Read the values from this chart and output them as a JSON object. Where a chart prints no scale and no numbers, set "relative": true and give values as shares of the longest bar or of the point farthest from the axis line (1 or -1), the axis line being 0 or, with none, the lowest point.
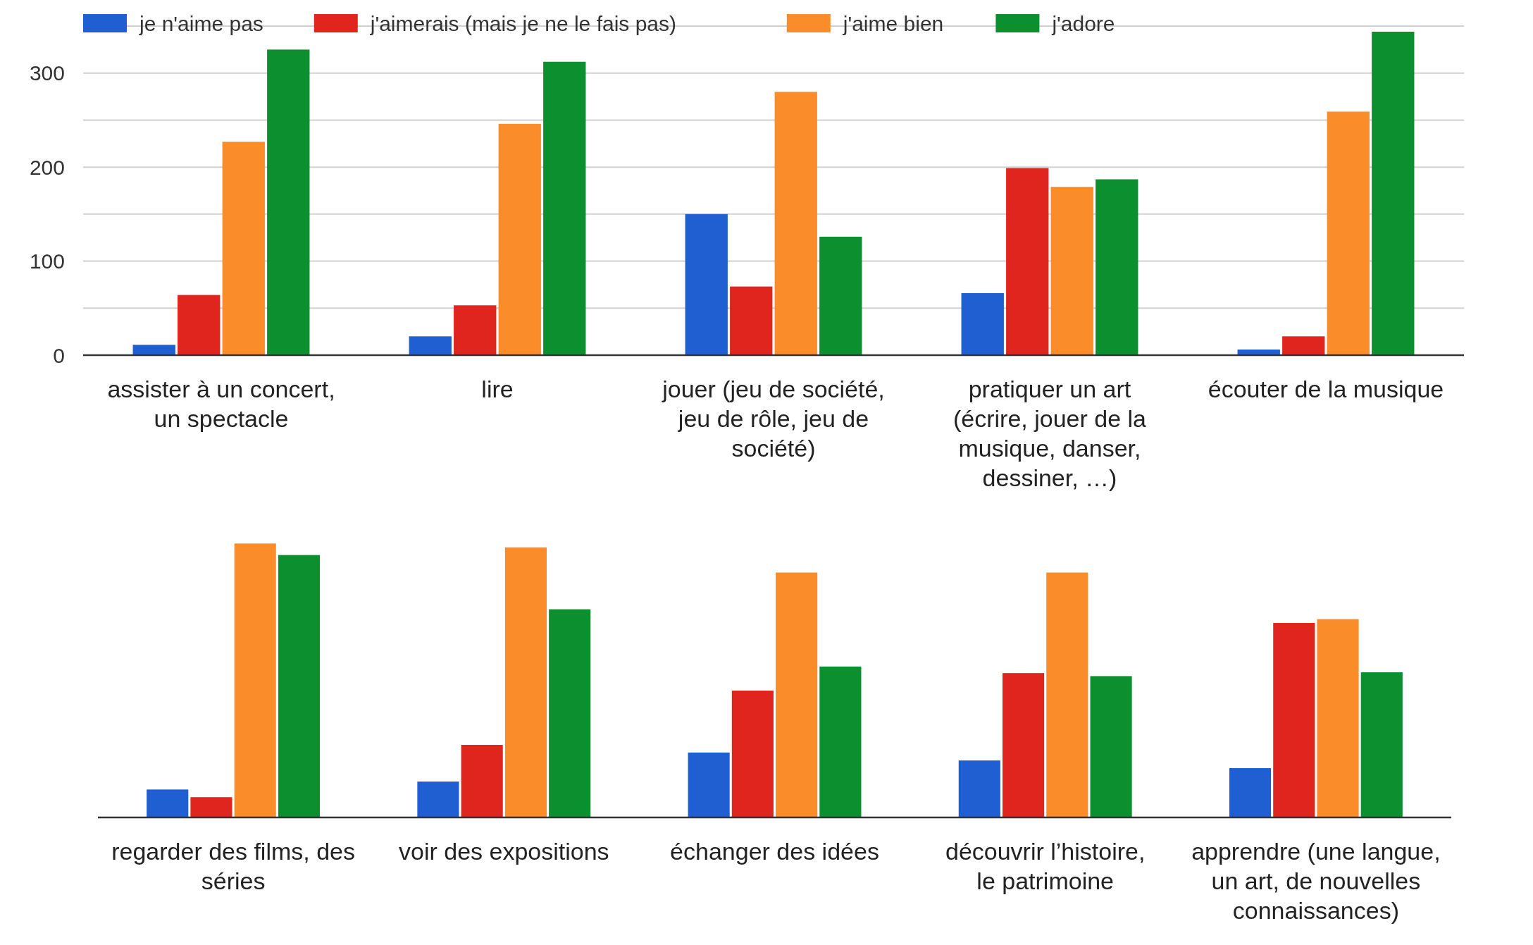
{
  "chart_data": [
    {
      "type": "bar",
      "categories": [
        "assister à un concert, un spectacle",
        "lire",
        "jouer (jeu de société, jeu de rôle, jeu de société)",
        "pratiquer un art (écrire, jouer de la musique, danser, dessiner, …)",
        "écouter de la musique"
      ],
      "series": [
        {
          "name": "je n'aime pas",
          "color": "#1f5fd1",
          "values": [
            11,
            20,
            150,
            66,
            6
          ]
        },
        {
          "name": "j'aimerais (mais je ne le fais pas)",
          "color": "#e0251f",
          "values": [
            64,
            53,
            73,
            199,
            20
          ]
        },
        {
          "name": "j'aime bien",
          "color": "#fb8c2a",
          "values": [
            227,
            246,
            280,
            179,
            259
          ]
        },
        {
          "name": "j'adore",
          "color": "#0c8f2e",
          "values": [
            325,
            312,
            126,
            187,
            344
          ]
        }
      ],
      "ylim": [
        0,
        350
      ],
      "yticks": [
        0,
        {
          "value": 50,
          "label": null
        },
        100,
        {
          "value": 150,
          "label": null
        },
        200,
        {
          "value": 250,
          "label": null
        },
        300,
        {
          "value": 350,
          "label": null
        }
      ],
      "grid": "y",
      "legend": "top left"
    },
    {
      "type": "bar",
      "relative": true,
      "categories": [
        "regarder des films, des séries",
        "voir des expositions",
        "échanger des idées",
        "découvrir l’histoire, le patrimoine",
        "apprendre (une langue, un art, de nouvelles connaissances)"
      ],
      "series": [
        {
          "color": "#1f5fd1",
          "values": [
            0.102,
            0.131,
            0.237,
            0.208,
            0.18
          ]
        },
        {
          "color": "#e0251f",
          "values": [
            0.074,
            0.265,
            0.463,
            0.527,
            0.71
          ]
        },
        {
          "color": "#fb8c2a",
          "values": [
            1,
            0.986,
            0.894,
            0.894,
            0.724
          ]
        },
        {
          "color": "#0c8f2e",
          "values": [
            0.958,
            0.76,
            0.551,
            0.516,
            0.53
          ]
        }
      ]
    }
  ]
}
